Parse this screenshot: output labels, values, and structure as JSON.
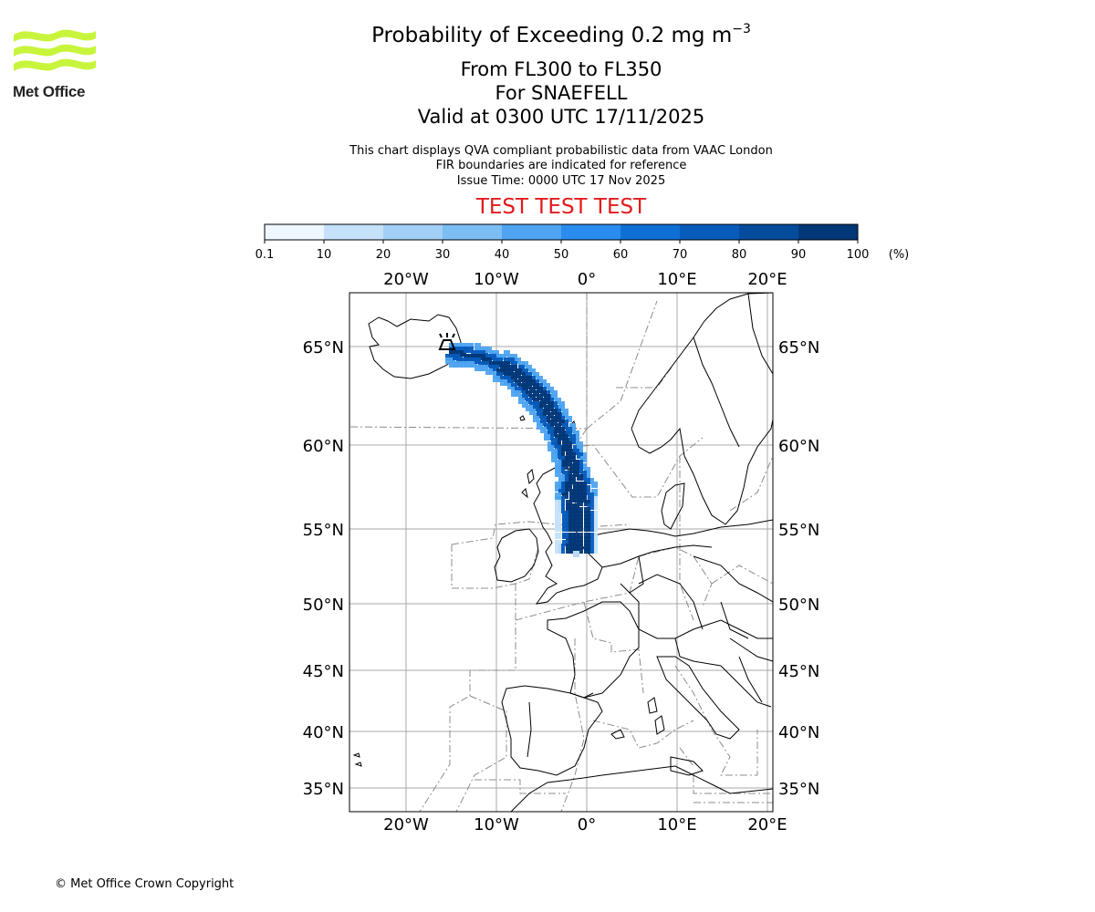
{
  "header": {
    "title_prefix": "Probability of Exceeding 0.2 mg m",
    "title_exponent": "−3",
    "level_range": "From FL300 to FL350",
    "volcano": "For SNAEFELL",
    "valid_time": "Valid at 0300 UTC 17/11/2025",
    "notes": [
      "This chart displays QVA compliant probabilistic data from VAAC London",
      "FIR boundaries are indicated for reference",
      "Issue Time: 0000 UTC 17 Nov 2025"
    ],
    "test_banner": "TEST TEST TEST"
  },
  "logo": {
    "text": "Met Office",
    "color": "#c8f53c"
  },
  "legend": {
    "unit": "(%)",
    "ticks": [
      "0.1",
      "10",
      "20",
      "30",
      "40",
      "50",
      "60",
      "70",
      "80",
      "90",
      "100"
    ],
    "colors": [
      "#eef6ff",
      "#c6e1fa",
      "#a3cff6",
      "#7cbdf3",
      "#4ea4f0",
      "#2a8cef",
      "#0f6fd5",
      "#075bbb",
      "#044b9c",
      "#023878"
    ]
  },
  "map": {
    "lon_labels": [
      "20°W",
      "10°W",
      "0°",
      "10°E",
      "20°E"
    ],
    "lat_labels": [
      "65°N",
      "60°N",
      "55°N",
      "50°N",
      "45°N",
      "40°N",
      "35°N"
    ],
    "volcano_marker": "volcano-icon",
    "plume_color": "#044b9c"
  },
  "footer": {
    "copyright": "© Met Office Crown Copyright"
  }
}
